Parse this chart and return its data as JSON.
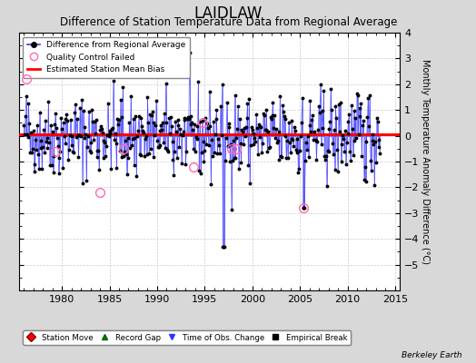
{
  "title": "LAIDLAW",
  "subtitle": "Difference of Station Temperature Data from Regional Average",
  "ylabel": "Monthly Temperature Anomaly Difference (°C)",
  "xlim": [
    1975.5,
    2015.5
  ],
  "ylim": [
    -6,
    4
  ],
  "yticks": [
    -5,
    -4,
    -3,
    -2,
    -1,
    0,
    1,
    2,
    3,
    4
  ],
  "xticks": [
    1980,
    1985,
    1990,
    1995,
    2000,
    2005,
    2010,
    2015
  ],
  "mean_bias": 0.05,
  "bias_color": "#ff0000",
  "line_color": "#3333ff",
  "dot_color": "#000000",
  "qc_color": "#ff69b4",
  "background_color": "#d8d8d8",
  "plot_bg_color": "#ffffff",
  "grid_color": "#cccccc",
  "title_fontsize": 12,
  "subtitle_fontsize": 8.5,
  "ylabel_fontsize": 7,
  "tick_fontsize": 8,
  "berkeley_earth_text": "Berkeley Earth",
  "seed": 42,
  "legend1_labels": [
    "Difference from Regional Average",
    "Quality Control Failed",
    "Estimated Station Mean Bias"
  ],
  "legend2_labels": [
    "Station Move",
    "Record Gap",
    "Time of Obs. Change",
    "Empirical Break"
  ]
}
